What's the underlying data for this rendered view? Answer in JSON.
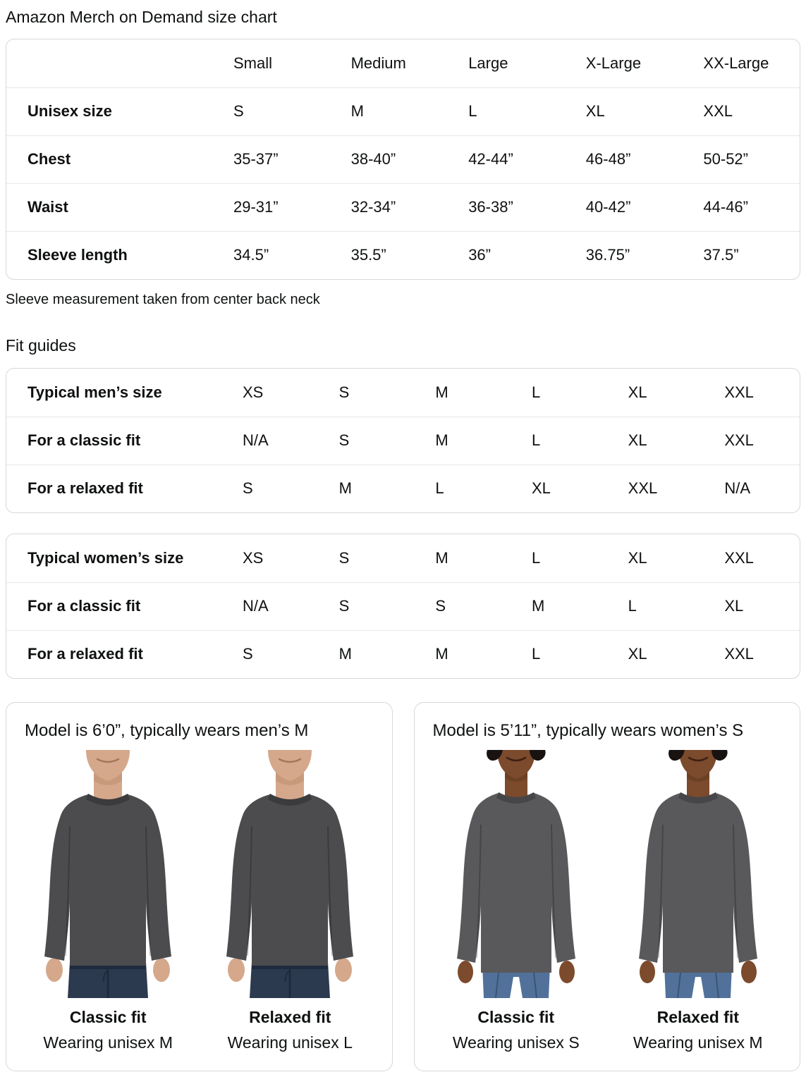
{
  "page": {
    "title": "Amazon Merch on Demand size chart",
    "sleeve_note": "Sleeve measurement taken from center back neck",
    "fit_guides_heading": "Fit guides"
  },
  "size_table": {
    "columns": [
      "Small",
      "Medium",
      "Large",
      "X-Large",
      "XX-Large"
    ],
    "rows": [
      {
        "label": "Unisex size",
        "values": [
          "S",
          "M",
          "L",
          "XL",
          "XXL"
        ]
      },
      {
        "label": "Chest",
        "values": [
          "35-37”",
          "38-40”",
          "42-44”",
          "46-48”",
          "50-52”"
        ]
      },
      {
        "label": "Waist",
        "values": [
          "29-31”",
          "32-34”",
          "36-38”",
          "40-42”",
          "44-46”"
        ]
      },
      {
        "label": "Sleeve length",
        "values": [
          "34.5”",
          "35.5”",
          "36”",
          "36.75”",
          "37.5”"
        ]
      }
    ]
  },
  "fit_tables": [
    {
      "rows": [
        {
          "label": "Typical men’s size",
          "values": [
            "XS",
            "S",
            "M",
            "L",
            "XL",
            "XXL"
          ]
        },
        {
          "label": "For a classic fit",
          "values": [
            "N/A",
            "S",
            "M",
            "L",
            "XL",
            "XXL"
          ]
        },
        {
          "label": "For a relaxed fit",
          "values": [
            "S",
            "M",
            "L",
            "XL",
            "XXL",
            "N/A"
          ]
        }
      ]
    },
    {
      "rows": [
        {
          "label": "Typical women’s size",
          "values": [
            "XS",
            "S",
            "M",
            "L",
            "XL",
            "XXL"
          ]
        },
        {
          "label": "For a classic fit",
          "values": [
            "N/A",
            "S",
            "S",
            "M",
            "L",
            "XL"
          ]
        },
        {
          "label": "For a relaxed fit",
          "values": [
            "S",
            "M",
            "M",
            "L",
            "XL",
            "XXL"
          ]
        }
      ]
    }
  ],
  "model_cards": [
    {
      "title": "Model is 6’0”, typically wears men’s M",
      "model": "man",
      "figures": [
        {
          "fit_label": "Classic fit",
          "wearing": "Wearing unisex M"
        },
        {
          "fit_label": "Relaxed fit",
          "wearing": "Wearing unisex L"
        }
      ]
    },
    {
      "title": "Model is 5’11”, typically wears women’s S",
      "model": "woman",
      "figures": [
        {
          "fit_label": "Classic fit",
          "wearing": "Wearing unisex S"
        },
        {
          "fit_label": "Relaxed fit",
          "wearing": "Wearing unisex M"
        }
      ]
    }
  ],
  "colors": {
    "text": "#0f1111",
    "table_border": "#d5d9d9",
    "row_divider": "#e7e7e7",
    "man": {
      "skin": "#d5a88b",
      "skin_shadow": "#bc8e70",
      "mouth": "#a5765a",
      "shirt": "#4c4c4e",
      "shirt_dark": "#3b3b3d",
      "jeans": "#2c3a50",
      "jeans_dark": "#1e2b3d"
    },
    "woman": {
      "skin": "#7c4a2c",
      "skin_shadow": "#633a21",
      "mouth": "#3e2012",
      "hair": "#181210",
      "shirt": "#59595c",
      "shirt_dark": "#464649",
      "jeans": "#51719a",
      "jeans_dark": "#3a5474"
    }
  }
}
